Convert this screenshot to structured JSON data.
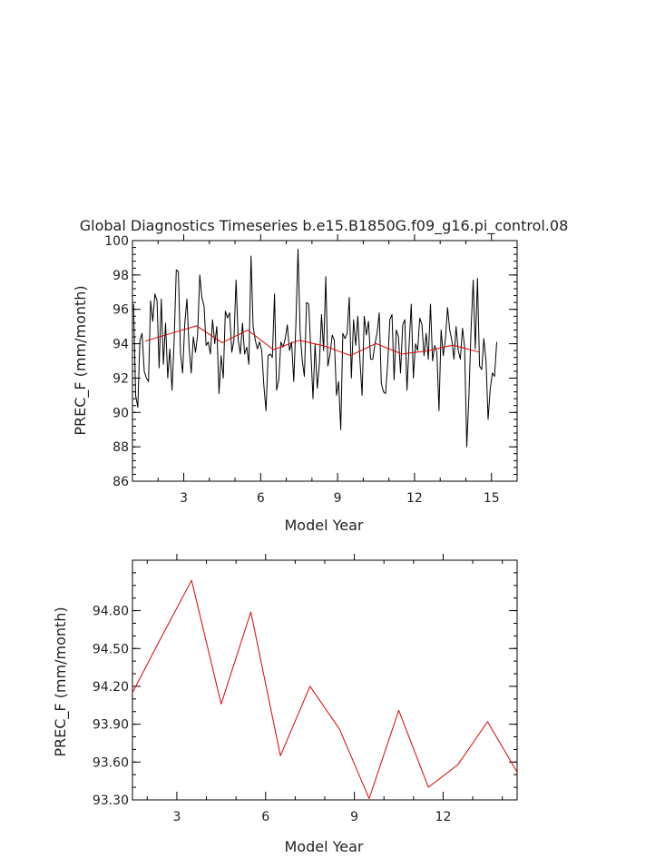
{
  "chart_data": [
    {
      "type": "line",
      "title": "Global Diagnostics Timeseries b.e15.B1850G.f09_g16.pi_control.08",
      "xlabel": "Model Year",
      "ylabel": "PREC_F (mm/month)",
      "xlim": [
        1.0,
        16.0
      ],
      "ylim": [
        86,
        100
      ],
      "xticks": [
        3,
        6,
        9,
        12,
        15
      ],
      "yticks": [
        86,
        88,
        90,
        92,
        94,
        96,
        98,
        100
      ],
      "ytick_labels": [
        "86",
        "88",
        "90",
        "92",
        "94",
        "96",
        "98",
        "100"
      ],
      "series": [
        {
          "color": "#000000",
          "start": 1.0417,
          "step": 0.0833,
          "values": [
            96.3,
            91.0,
            90.3,
            94.2,
            94.6,
            92.4,
            92.0,
            91.8,
            96.5,
            95.3,
            96.9,
            96.5,
            92.6,
            96.6,
            92.8,
            95.2,
            92.0,
            93.7,
            91.3,
            94.1,
            98.3,
            98.2,
            93.4,
            92.3,
            95.2,
            96.6,
            93.8,
            92.3,
            94.4,
            93.5,
            94.5,
            98.0,
            96.7,
            96.2,
            93.9,
            94.1,
            93.4,
            95.4,
            94.0,
            95.0,
            91.1,
            93.3,
            92.0,
            95.9,
            95.5,
            95.8,
            93.5,
            94.2,
            97.7,
            94.2,
            93.4,
            95.2,
            93.4,
            93.8,
            92.8,
            99.1,
            95.0,
            94.2,
            93.7,
            94.1,
            93.6,
            91.6,
            90.1,
            93.3,
            93.4,
            93.2,
            96.9,
            91.3,
            91.9,
            94.1,
            93.8,
            94.3,
            95.1,
            93.6,
            94.1,
            91.8,
            95.1,
            99.5,
            94.7,
            93.0,
            92.1,
            96.4,
            96.3,
            93.6,
            90.8,
            94.0,
            91.4,
            92.8,
            95.7,
            93.6,
            97.9,
            92.7,
            93.4,
            94.5,
            94.2,
            91.0,
            91.8,
            89.0,
            94.6,
            94.3,
            94.6,
            96.7,
            92.0,
            95.4,
            93.9,
            95.6,
            93.0,
            91.0,
            95.6,
            94.5,
            95.3,
            93.1,
            93.1,
            94.0,
            94.6,
            95.8,
            91.7,
            91.2,
            91.1,
            92.9,
            95.4,
            95.7,
            91.9,
            94.8,
            94.4,
            92.3,
            95.1,
            95.4,
            91.3,
            93.9,
            96.3,
            92.0,
            94.0,
            93.6,
            95.5,
            95.1,
            93.3,
            94.6,
            93.1,
            96.3,
            93.0,
            93.9,
            93.5,
            90.1,
            94.8,
            93.3,
            94.3,
            96.1,
            94.8,
            94.2,
            93.1,
            95.0,
            93.6,
            93.1,
            94.9,
            93.8,
            88.0,
            91.0,
            94.8,
            97.7,
            93.7,
            97.8,
            92.7,
            92.5,
            94.3,
            93.0,
            89.6,
            91.4,
            92.3,
            92.1,
            94.1
          ]
        },
        {
          "color": "#e00000",
          "x": [
            1.5,
            2.5,
            3.5,
            4.5,
            5.5,
            6.5,
            7.5,
            8.5,
            9.5,
            10.5,
            11.5,
            12.5,
            13.5,
            14.5
          ],
          "values": [
            94.15,
            94.6,
            95.04,
            94.06,
            94.79,
            93.65,
            94.2,
            93.86,
            93.31,
            94.01,
            93.4,
            93.58,
            93.92,
            93.52
          ]
        }
      ]
    },
    {
      "type": "line",
      "title": "",
      "xlabel": "Model Year",
      "ylabel": "PREC_F (mm/month)",
      "xlim": [
        1.5,
        14.5
      ],
      "ylim": [
        93.3,
        95.2
      ],
      "xticks": [
        3,
        6,
        9,
        12
      ],
      "yticks": [
        93.3,
        93.6,
        93.9,
        94.2,
        94.5,
        94.8
      ],
      "ytick_labels": [
        "93.30",
        "93.60",
        "93.90",
        "94.20",
        "94.50",
        "94.80"
      ],
      "series": [
        {
          "color": "#e00000",
          "x": [
            1.5,
            2.5,
            3.5,
            4.5,
            5.5,
            6.5,
            7.5,
            8.5,
            9.5,
            10.5,
            11.5,
            12.5,
            13.5,
            14.5
          ],
          "values": [
            94.15,
            94.6,
            95.04,
            94.06,
            94.79,
            93.65,
            94.2,
            93.86,
            93.31,
            94.01,
            93.4,
            93.58,
            93.92,
            93.52
          ]
        }
      ]
    }
  ]
}
